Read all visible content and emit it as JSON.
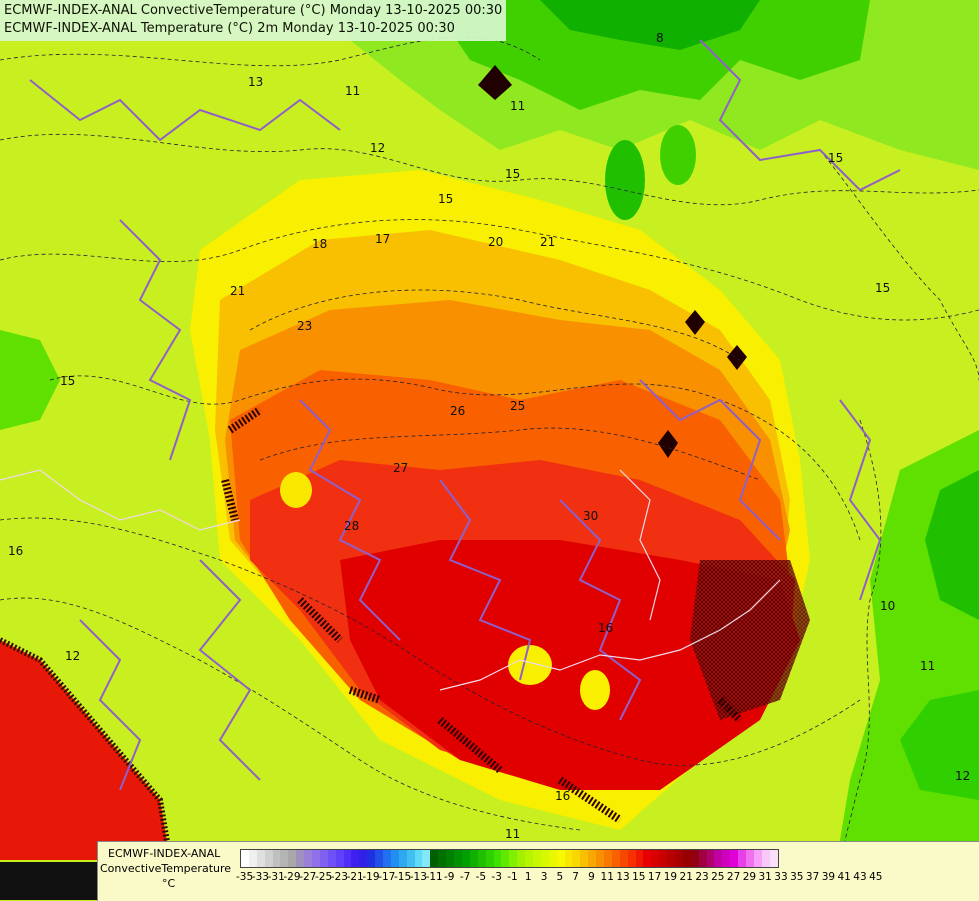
{
  "header": {
    "line1": "ECMWF-INDEX-ANAL ConvectiveTemperature (°C) Monday 13-10-2025 00:30",
    "line2": "ECMWF-INDEX-ANAL Temperature (°C) 2m Monday 13-10-2025 00:30"
  },
  "legend": {
    "title_line1": "ECMWF-INDEX-ANAL",
    "title_line2": "ConvectiveTemperature",
    "unit": "°C",
    "ticks": [
      "-35",
      "-33",
      "-31",
      "-29",
      "-27",
      "-25",
      "-23",
      "-21",
      "-19",
      "-17",
      "-15",
      "-13",
      "-11",
      "-9",
      "-7",
      "-5",
      "-3",
      "-1",
      "1",
      "3",
      "5",
      "7",
      "9",
      "11",
      "13",
      "15",
      "17",
      "19",
      "21",
      "23",
      "25",
      "27",
      "29",
      "31",
      "33",
      "35",
      "37",
      "39",
      "41",
      "43",
      "45"
    ],
    "colors": [
      "#ffffff",
      "#f0f0f0",
      "#e0e0e0",
      "#d0d0d0",
      "#c0c0c0",
      "#b4b4b4",
      "#a8a8a8",
      "#a090c0",
      "#9a80d8",
      "#9070e8",
      "#8060f0",
      "#7050f8",
      "#6040f8",
      "#5030f8",
      "#4020f0",
      "#3020e8",
      "#2030e0",
      "#2050e8",
      "#2070f0",
      "#2090f0",
      "#30a8f0",
      "#40c0f0",
      "#60d8f8",
      "#80e8f8",
      "#006000",
      "#007000",
      "#008000",
      "#009000",
      "#00a000",
      "#10b000",
      "#20c000",
      "#30d000",
      "#40e000",
      "#60e800",
      "#80f000",
      "#a0f000",
      "#b8f400",
      "#c8f800",
      "#d8f800",
      "#e8f800",
      "#f8f800",
      "#f8e800",
      "#f8d800",
      "#f8c000",
      "#f8a800",
      "#f89000",
      "#f87800",
      "#f86000",
      "#f84800",
      "#f83000",
      "#f01800",
      "#e80000",
      "#d80000",
      "#c80000",
      "#b80000",
      "#a80000",
      "#980000",
      "#900010",
      "#a00040",
      "#b00070",
      "#c000a0",
      "#d000c0",
      "#e000d8",
      "#e840e8",
      "#f070f0",
      "#f8a0f8",
      "#f8c8f8",
      "#f8e0f8"
    ]
  },
  "map": {
    "contour_labels": [
      "13",
      "11",
      "12",
      "11",
      "15",
      "17",
      "18",
      "20",
      "21",
      "15",
      "23",
      "25",
      "26",
      "27",
      "28",
      "30",
      "8",
      "15",
      "10",
      "11",
      "12",
      "16",
      "12",
      "11",
      "15",
      "21",
      "16",
      "16",
      "15"
    ]
  }
}
